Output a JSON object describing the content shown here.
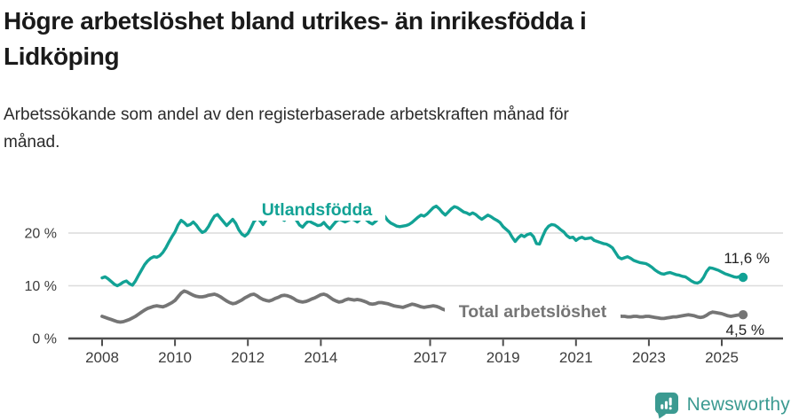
{
  "header": {
    "title": "Högre arbetslöshet bland utrikes- än inrikesfödda i Lidköping",
    "title_line1": "Högre arbetslöshet bland utrikes- än inrikesfödda i",
    "title_line2": "Lidköping",
    "subtitle": "Arbetssökande som andel av den registerbaserade arbetskraften månad för månad.",
    "subtitle_line1": "Arbetssökande som andel av den registerbaserade arbetskraften månad för",
    "subtitle_line2": "månad."
  },
  "chart_data": {
    "type": "line",
    "title": "Högre arbetslöshet bland utrikes- än inrikesfödda i Lidköping",
    "subtitle": "Arbetssökande som andel av den registerbaserade arbetskraften månad för månad.",
    "grid": "horizontal",
    "legend_position": "inline-labels",
    "x_axis": {
      "start_year": 2008,
      "points_per_year": 12,
      "tick_years": [
        2008,
        2010,
        2012,
        2014,
        2017,
        2019,
        2021,
        2023,
        2025
      ]
    },
    "y_axis": {
      "ticks": [
        0,
        10,
        20
      ],
      "tick_suffix": " %",
      "ylim": [
        0,
        27.5
      ]
    },
    "colors": {
      "accent_teal": "#12a295",
      "line_gray": "#757575",
      "grid": "#dcdcdc",
      "axis": "#4d4d4d",
      "text": "#3c3c3c",
      "annotation": "#222222"
    },
    "series": [
      {
        "name": "Utlandsfödda",
        "color": "#12a295",
        "end_label": "11,6 %",
        "end_value": 11.6,
        "values": [
          11.5,
          11.7,
          11.3,
          10.8,
          10.3,
          10.0,
          10.3,
          10.7,
          10.9,
          10.4,
          10.1,
          10.9,
          12.0,
          13.0,
          14.0,
          14.7,
          15.2,
          15.5,
          15.4,
          15.7,
          16.3,
          17.2,
          18.3,
          19.3,
          20.2,
          21.5,
          22.4,
          22.0,
          21.4,
          21.6,
          22.1,
          21.5,
          20.7,
          20.1,
          20.4,
          21.2,
          22.3,
          23.2,
          23.5,
          22.8,
          22.1,
          21.4,
          22.0,
          22.6,
          21.8,
          20.6,
          19.8,
          19.4,
          19.9,
          21.0,
          22.2,
          22.8,
          22.4,
          21.6,
          22.5,
          23.3,
          23.8,
          23.9,
          23.4,
          22.8,
          22.4,
          23.0,
          23.4,
          23.1,
          22.4,
          21.5,
          21.1,
          21.8,
          22.3,
          22.0,
          21.7,
          21.4,
          21.5,
          22.0,
          21.3,
          20.8,
          21.5,
          22.2,
          22.6,
          22.4,
          22.1,
          22.4,
          22.7,
          22.5,
          22.1,
          22.6,
          22.9,
          22.5,
          22.0,
          21.7,
          22.2,
          22.8,
          23.4,
          23.2,
          22.4,
          21.9,
          21.6,
          21.3,
          21.2,
          21.3,
          21.4,
          21.6,
          22.0,
          22.5,
          23.0,
          23.4,
          23.2,
          23.6,
          24.2,
          24.8,
          25.1,
          24.6,
          23.9,
          23.4,
          24.0,
          24.6,
          25.0,
          24.8,
          24.4,
          24.0,
          23.8,
          23.5,
          23.8,
          23.5,
          23.0,
          22.6,
          23.0,
          23.4,
          23.1,
          22.7,
          22.4,
          22.0,
          21.2,
          20.7,
          20.2,
          19.2,
          18.4,
          19.1,
          19.6,
          19.3,
          19.7,
          19.9,
          19.3,
          18.0,
          17.9,
          19.3,
          20.6,
          21.3,
          21.6,
          21.5,
          21.1,
          20.6,
          20.2,
          19.5,
          19.1,
          19.2,
          18.6,
          19.0,
          19.2,
          18.9,
          19.0,
          19.1,
          18.6,
          18.4,
          18.2,
          18.0,
          17.9,
          17.6,
          17.2,
          16.3,
          15.4,
          15.1,
          15.3,
          15.5,
          15.2,
          14.8,
          14.6,
          14.4,
          14.3,
          14.2,
          13.9,
          13.5,
          13.0,
          12.6,
          12.3,
          12.2,
          12.4,
          12.5,
          12.3,
          12.1,
          12.0,
          11.8,
          11.7,
          11.3,
          10.9,
          10.6,
          10.5,
          10.8,
          11.6,
          12.7,
          13.4,
          13.3,
          13.1,
          12.9,
          12.6,
          12.3,
          12.1,
          11.9,
          11.7,
          11.6,
          11.8,
          11.6
        ]
      },
      {
        "name": "Total arbetslöshet",
        "color": "#757575",
        "end_label": "4,5 %",
        "end_value": 4.5,
        "values": [
          4.2,
          4.0,
          3.8,
          3.6,
          3.4,
          3.2,
          3.1,
          3.2,
          3.4,
          3.6,
          3.9,
          4.2,
          4.6,
          5.0,
          5.4,
          5.7,
          5.9,
          6.1,
          6.2,
          6.1,
          6.0,
          6.2,
          6.5,
          6.8,
          7.2,
          7.9,
          8.6,
          9.0,
          8.8,
          8.5,
          8.2,
          8.0,
          7.9,
          7.9,
          8.0,
          8.2,
          8.3,
          8.4,
          8.2,
          7.9,
          7.5,
          7.1,
          6.8,
          6.6,
          6.7,
          7.0,
          7.3,
          7.7,
          8.0,
          8.3,
          8.4,
          8.1,
          7.7,
          7.4,
          7.2,
          7.1,
          7.3,
          7.6,
          7.8,
          8.1,
          8.2,
          8.1,
          7.9,
          7.6,
          7.2,
          7.0,
          6.9,
          7.0,
          7.2,
          7.5,
          7.7,
          8.0,
          8.3,
          8.4,
          8.2,
          7.8,
          7.4,
          7.1,
          6.9,
          7.0,
          7.3,
          7.5,
          7.4,
          7.3,
          7.4,
          7.3,
          7.1,
          6.9,
          6.6,
          6.5,
          6.6,
          6.8,
          6.8,
          6.7,
          6.6,
          6.4,
          6.2,
          6.1,
          6.0,
          5.9,
          6.1,
          6.3,
          6.5,
          6.4,
          6.2,
          6.0,
          5.9,
          6.0,
          6.1,
          6.2,
          6.1,
          5.9,
          5.6,
          5.4,
          5.3,
          5.4,
          5.6,
          5.7,
          5.7,
          5.6,
          5.5,
          5.4,
          5.3,
          5.1,
          5.0,
          4.9,
          4.8,
          4.9,
          5.0,
          5.1,
          5.1,
          5.0,
          4.9,
          4.8,
          4.7,
          4.6,
          4.5,
          4.5,
          4.6,
          4.7,
          4.8,
          4.9,
          5.0,
          5.1,
          5.3,
          5.4,
          5.8,
          6.3,
          6.6,
          6.7,
          6.6,
          6.4,
          6.2,
          6.0,
          5.9,
          5.8,
          5.7,
          5.6,
          5.5,
          5.3,
          5.2,
          5.0,
          4.9,
          4.8,
          4.7,
          4.6,
          4.6,
          4.5,
          4.5,
          4.4,
          4.3,
          4.2,
          4.2,
          4.1,
          4.1,
          4.2,
          4.2,
          4.1,
          4.1,
          4.2,
          4.2,
          4.1,
          4.0,
          3.9,
          3.8,
          3.8,
          3.9,
          4.0,
          4.1,
          4.1,
          4.2,
          4.3,
          4.4,
          4.5,
          4.4,
          4.3,
          4.1,
          4.0,
          4.1,
          4.4,
          4.8,
          5.0,
          4.9,
          4.8,
          4.7,
          4.5,
          4.3,
          4.2,
          4.3,
          4.4,
          4.5,
          4.5
        ]
      }
    ]
  },
  "footer": {
    "brand": "Newsworthy",
    "brand_color": "#3b9a91"
  }
}
